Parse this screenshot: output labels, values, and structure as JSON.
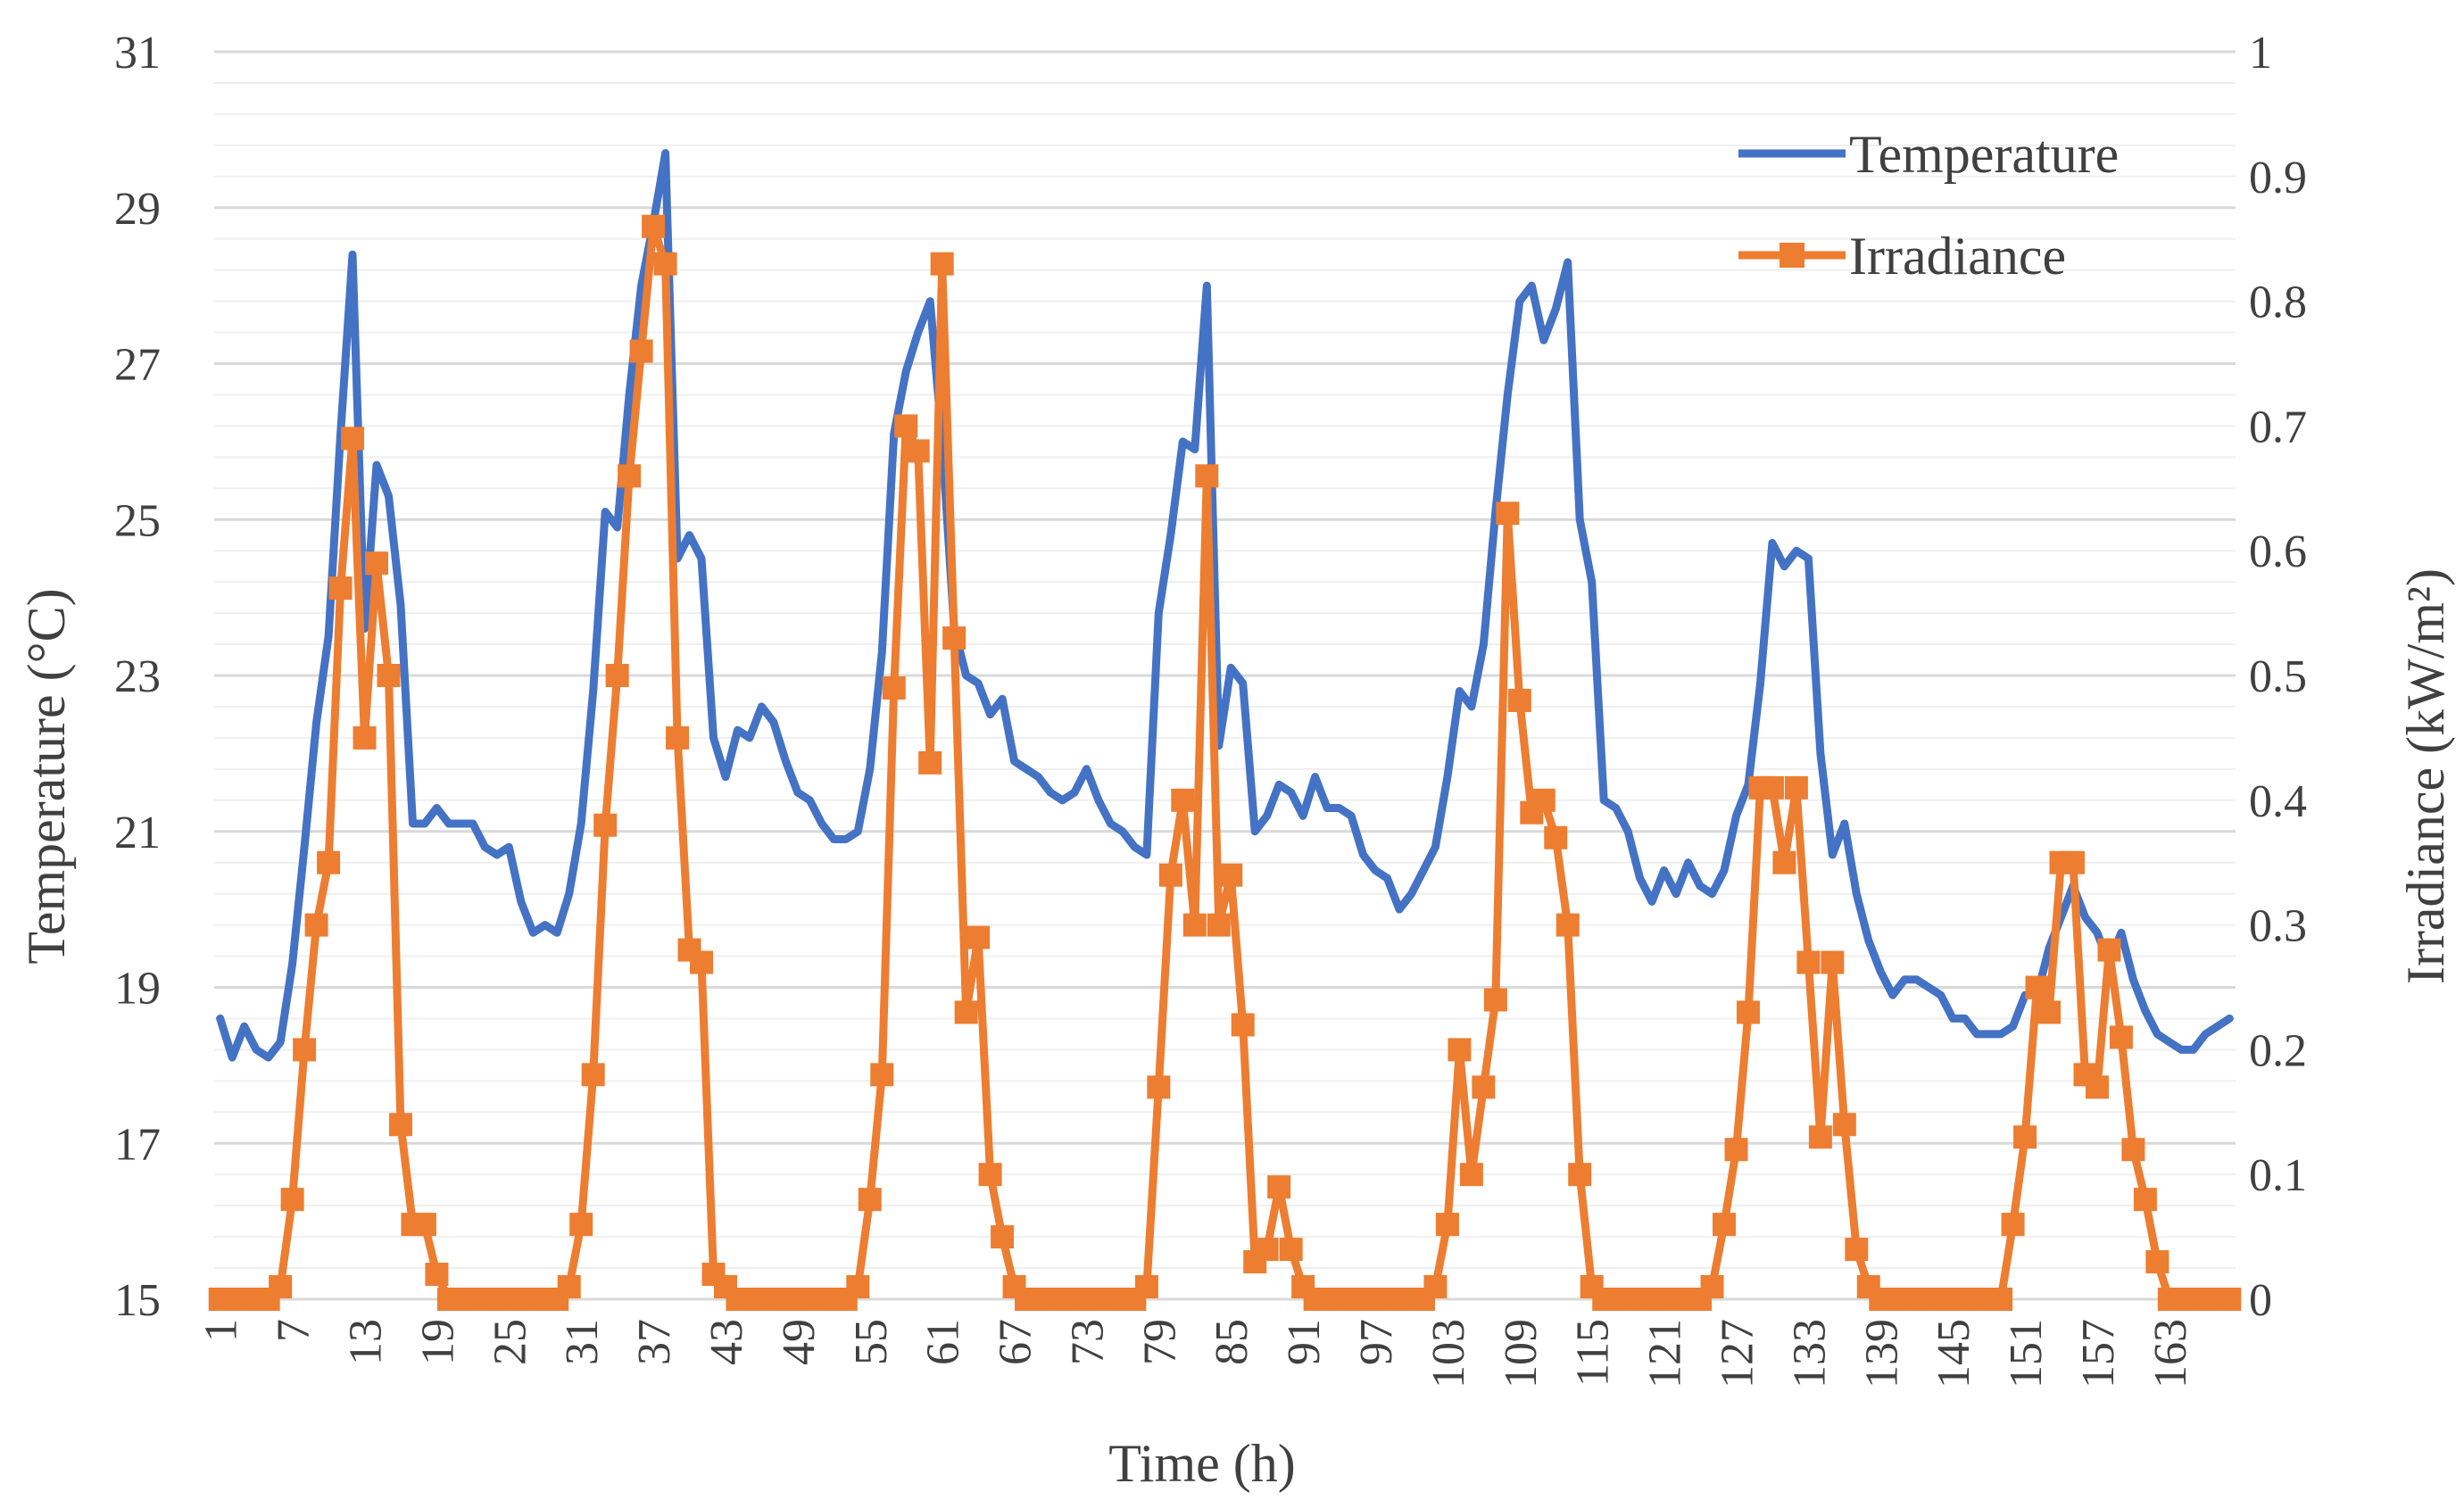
{
  "chart_data": {
    "type": "line",
    "title": "",
    "xlabel": "Time (h)",
    "ylabel": "Temperature (°C)",
    "y2label": "Irradiance (kW/m²)",
    "ylim": [
      15,
      31
    ],
    "y2lim": [
      0,
      1
    ],
    "yticks": [
      15,
      17,
      19,
      21,
      23,
      25,
      27,
      29,
      31
    ],
    "y2ticks": [
      "0",
      "0.1",
      "0.2",
      "0.3",
      "0.4",
      "0.5",
      "0.6",
      "0.7",
      "0.8",
      "0.9",
      "1"
    ],
    "xticks": [
      1,
      7,
      13,
      19,
      25,
      31,
      37,
      43,
      49,
      55,
      61,
      67,
      73,
      79,
      85,
      91,
      97,
      103,
      109,
      115,
      121,
      127,
      133,
      139,
      145,
      151,
      157,
      163
    ],
    "x_range": [
      1,
      168
    ],
    "legend_position": "top-right",
    "grid": true,
    "series": [
      {
        "name": "Temperature",
        "axis": "left",
        "color": "#4472C4",
        "marker": "none",
        "values": [
          18.6,
          18.1,
          18.5,
          18.2,
          18.1,
          18.3,
          19.3,
          20.8,
          22.4,
          23.5,
          26.1,
          28.4,
          23.6,
          25.7,
          25.3,
          23.9,
          21.1,
          21.1,
          21.3,
          21.1,
          21.1,
          21.1,
          20.8,
          20.7,
          20.8,
          20.1,
          19.7,
          19.8,
          19.7,
          20.2,
          21.1,
          22.8,
          25.1,
          24.9,
          26.6,
          28.0,
          28.8,
          29.7,
          24.5,
          24.8,
          24.5,
          22.2,
          21.7,
          22.3,
          22.2,
          22.6,
          22.4,
          21.9,
          21.5,
          21.4,
          21.1,
          20.9,
          20.9,
          21.0,
          21.8,
          23.3,
          26.1,
          26.9,
          27.4,
          27.8,
          26.0,
          23.6,
          23.0,
          22.9,
          22.5,
          22.7,
          21.9,
          21.8,
          21.7,
          21.5,
          21.4,
          21.5,
          21.8,
          21.4,
          21.1,
          21.0,
          20.8,
          20.7,
          23.8,
          24.8,
          26.0,
          25.9,
          28.0,
          22.1,
          23.1,
          22.9,
          21.0,
          21.2,
          21.6,
          21.5,
          21.2,
          21.7,
          21.3,
          21.3,
          21.2,
          20.7,
          20.5,
          20.4,
          20.0,
          20.2,
          20.5,
          20.8,
          21.7,
          22.8,
          22.6,
          23.4,
          25.1,
          26.6,
          27.8,
          28.0,
          27.3,
          27.7,
          28.3,
          25.0,
          24.2,
          21.4,
          21.3,
          21.0,
          20.4,
          20.1,
          20.5,
          20.2,
          20.6,
          20.3,
          20.2,
          20.5,
          21.2,
          21.6,
          22.9,
          24.7,
          24.4,
          24.6,
          24.5,
          22.0,
          20.7,
          21.1,
          20.2,
          19.6,
          19.2,
          18.9,
          19.1,
          19.1,
          19.0,
          18.9,
          18.6,
          18.6,
          18.4,
          18.4,
          18.4,
          18.5,
          18.9,
          18.9,
          19.5,
          19.9,
          20.3,
          19.9,
          19.7,
          19.3,
          19.7,
          19.1,
          18.7,
          18.4,
          18.3,
          18.2,
          18.2,
          18.4,
          18.5,
          18.6
        ]
      },
      {
        "name": "Irradiance",
        "axis": "right",
        "color": "#ED7D31",
        "marker": "square",
        "values": [
          0,
          0,
          0,
          0,
          0,
          0.01,
          0.08,
          0.2,
          0.3,
          0.35,
          0.57,
          0.69,
          0.45,
          0.59,
          0.5,
          0.14,
          0.06,
          0.06,
          0.02,
          0,
          0,
          0,
          0,
          0,
          0,
          0,
          0,
          0,
          0,
          0.01,
          0.06,
          0.18,
          0.38,
          0.5,
          0.66,
          0.76,
          0.86,
          0.83,
          0.45,
          0.28,
          0.27,
          0.02,
          0.01,
          0,
          0,
          0,
          0,
          0,
          0,
          0,
          0,
          0,
          0,
          0.01,
          0.08,
          0.18,
          0.49,
          0.7,
          0.68,
          0.43,
          0.83,
          0.53,
          0.23,
          0.29,
          0.1,
          0.05,
          0.01,
          0,
          0,
          0,
          0,
          0,
          0,
          0,
          0,
          0,
          0,
          0.01,
          0.17,
          0.34,
          0.4,
          0.3,
          0.66,
          0.3,
          0.34,
          0.22,
          0.03,
          0.04,
          0.09,
          0.04,
          0.01,
          0,
          0,
          0,
          0,
          0,
          0,
          0,
          0,
          0,
          0,
          0.01,
          0.06,
          0.2,
          0.1,
          0.17,
          0.24,
          0.63,
          0.48,
          0.39,
          0.4,
          0.37,
          0.3,
          0.1,
          0.01,
          0,
          0,
          0,
          0,
          0,
          0,
          0,
          0,
          0,
          0.01,
          0.06,
          0.12,
          0.23,
          0.41,
          0.41,
          0.35,
          0.41,
          0.27,
          0.13,
          0.27,
          0.14,
          0.04,
          0.01,
          0,
          0,
          0,
          0,
          0,
          0,
          0,
          0,
          0,
          0,
          0,
          0.06,
          0.13,
          0.25,
          0.23,
          0.35,
          0.35,
          0.18,
          0.17,
          0.28,
          0.21,
          0.12,
          0.08,
          0.03,
          0,
          0,
          0,
          0,
          0,
          0
        ]
      }
    ]
  }
}
